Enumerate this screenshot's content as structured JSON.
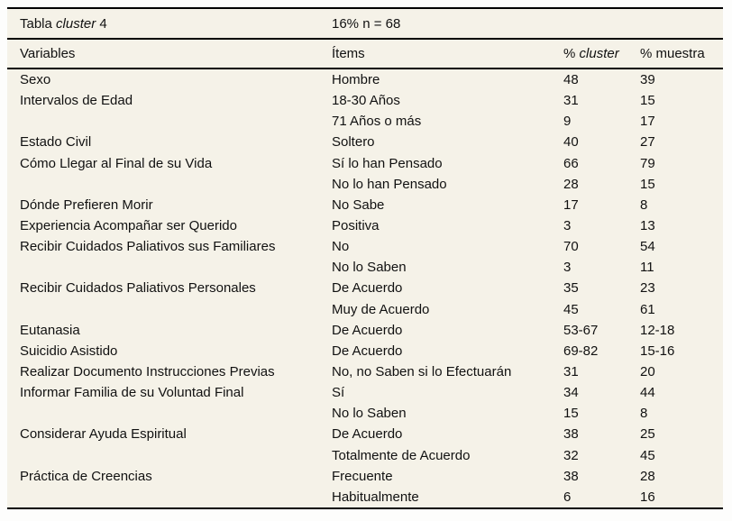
{
  "colors": {
    "page_background": "#fdfdfc",
    "table_background": "#f5f2e8",
    "rule_color": "#000000",
    "text_color": "#111111"
  },
  "table": {
    "title": {
      "prefix": "Tabla ",
      "italic": "cluster",
      "suffix": " 4"
    },
    "subtitle": "16% n = 68",
    "columns": {
      "variables": "Variables",
      "items": "Ítems",
      "cluster_prefix": "% ",
      "cluster_italic": "cluster",
      "muestra": "% muestra"
    },
    "rows": [
      {
        "variable": "Sexo",
        "item": "Hombre",
        "cluster": "48",
        "muestra": "39"
      },
      {
        "variable": "Intervalos de Edad",
        "item": "18-30 Años",
        "cluster": "31",
        "muestra": "15"
      },
      {
        "variable": "",
        "item": "71 Años o más",
        "cluster": "9",
        "muestra": "17"
      },
      {
        "variable": "Estado Civil",
        "item": "Soltero",
        "cluster": "40",
        "muestra": "27"
      },
      {
        "variable": "Cómo Llegar al Final de su Vida",
        "item": "Sí lo han Pensado",
        "cluster": "66",
        "muestra": "79"
      },
      {
        "variable": "",
        "item": "No lo han Pensado",
        "cluster": "28",
        "muestra": "15"
      },
      {
        "variable": "Dónde Prefieren Morir",
        "item": "No Sabe",
        "cluster": "17",
        "muestra": "8"
      },
      {
        "variable": "Experiencia Acompañar ser Querido",
        "item": "Positiva",
        "cluster": "3",
        "muestra": "13"
      },
      {
        "variable": "Recibir Cuidados Paliativos sus Familiares",
        "item": "No",
        "cluster": "70",
        "muestra": "54"
      },
      {
        "variable": "",
        "item": "No lo Saben",
        "cluster": "3",
        "muestra": "11"
      },
      {
        "variable": "Recibir Cuidados Paliativos Personales",
        "item": "De Acuerdo",
        "cluster": "35",
        "muestra": "23"
      },
      {
        "variable": "",
        "item": "Muy de Acuerdo",
        "cluster": "45",
        "muestra": "61"
      },
      {
        "variable": "Eutanasia",
        "item": "De Acuerdo",
        "cluster": "53-67",
        "muestra": "12-18"
      },
      {
        "variable": "Suicidio Asistido",
        "item": "De Acuerdo",
        "cluster": "69-82",
        "muestra": "15-16"
      },
      {
        "variable": "Realizar Documento Instrucciones Previas",
        "item": "No, no Saben si lo Efectuarán",
        "cluster": "31",
        "muestra": "20"
      },
      {
        "variable": "Informar Familia de su Voluntad Final",
        "item": "Sí",
        "cluster": "34",
        "muestra": "44"
      },
      {
        "variable": "",
        "item": "No lo Saben",
        "cluster": "15",
        "muestra": "8"
      },
      {
        "variable": "Considerar Ayuda Espiritual",
        "item": "De Acuerdo",
        "cluster": "38",
        "muestra": "25"
      },
      {
        "variable": "",
        "item": "Totalmente de Acuerdo",
        "cluster": "32",
        "muestra": "45"
      },
      {
        "variable": "Práctica de Creencias",
        "item": "Frecuente",
        "cluster": "38",
        "muestra": "28"
      },
      {
        "variable": "",
        "item": "Habitualmente",
        "cluster": "6",
        "muestra": "16"
      }
    ]
  }
}
